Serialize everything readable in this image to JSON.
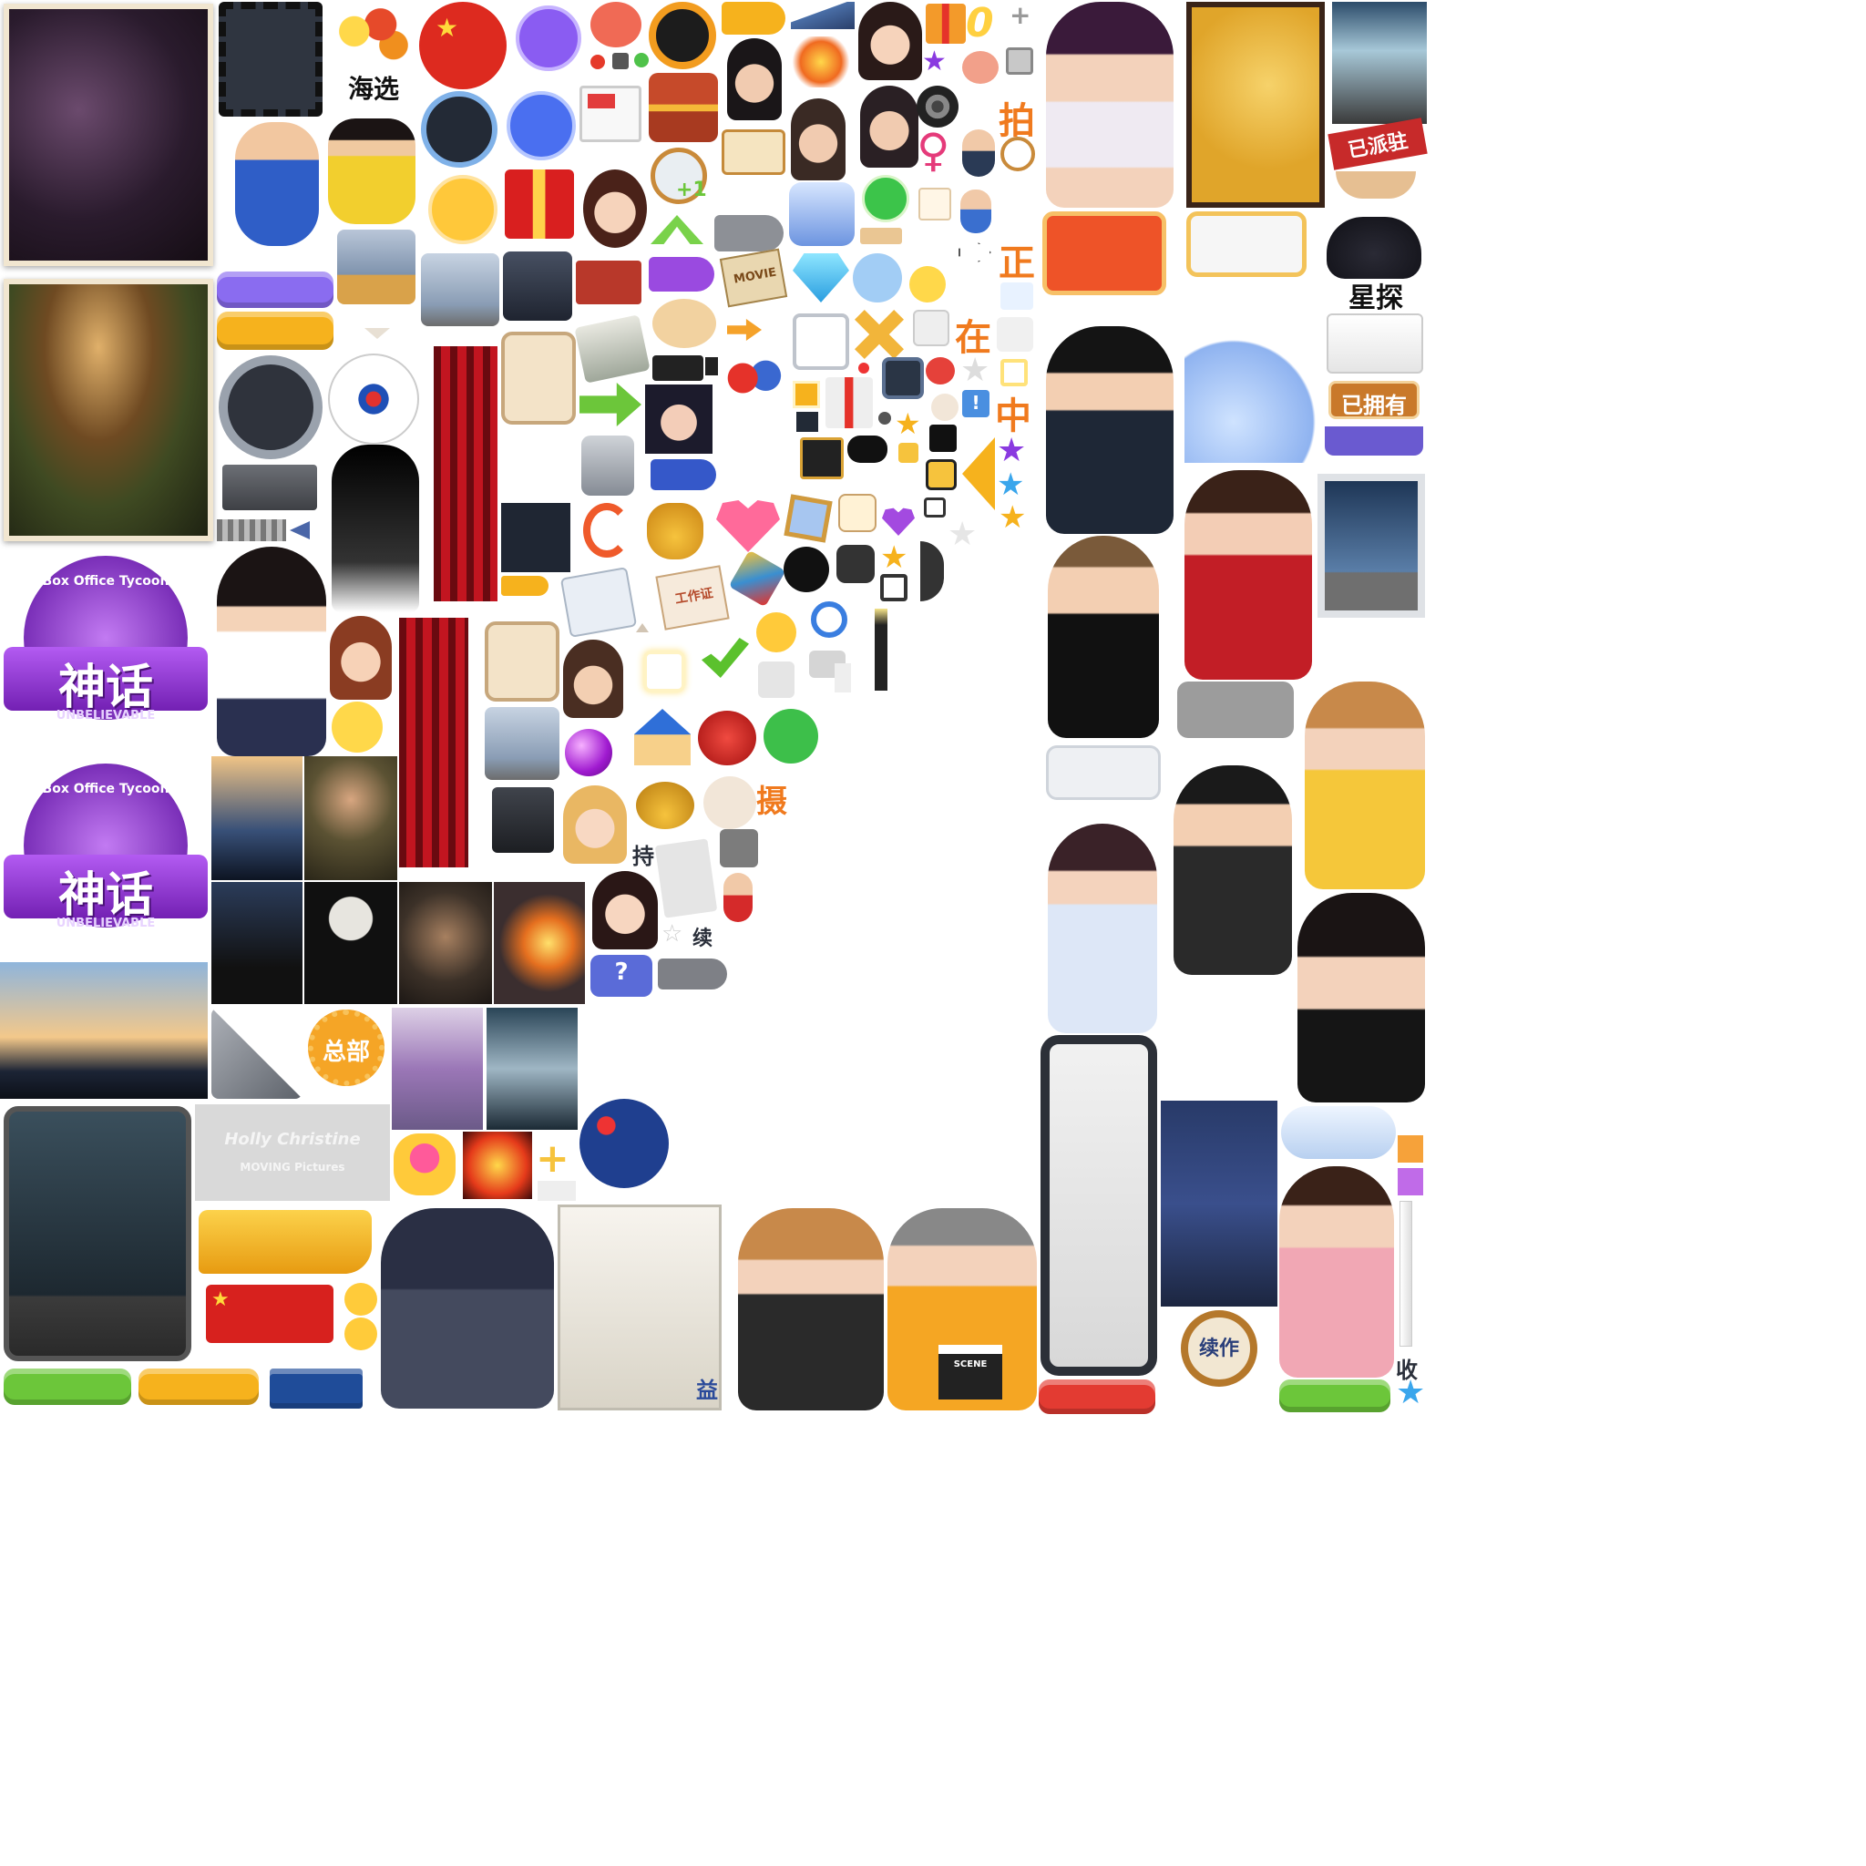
{
  "atlas": {
    "sheet_size": "2048x2048",
    "texts": {
      "haixuan": "海选",
      "pai": "拍",
      "zheng": "正",
      "zai": "在",
      "zhong": "中",
      "xingtan": "星探",
      "yipaizhu": "已派驻",
      "yiyongyou": "已拥有",
      "shenhua": "神话",
      "box_office": "Box Office Tycoon",
      "unbelievable": "UNBELIEVABLE",
      "zongbu": "总部",
      "she": "摄",
      "chi": "持",
      "xu": "续",
      "xuzuo": "续作",
      "yi": "益",
      "shou": "收",
      "plus_one": "+1",
      "zero": "0",
      "movie": "MOVIE",
      "gongzuozheng": "工作证",
      "holly": "Holly Christine",
      "moving_pictures": "MOVING Pictures",
      "scene": "SCENE"
    },
    "colors": {
      "purple": "#8a4fe0",
      "yellow": "#f6b21d",
      "orange": "#ef5a2b",
      "green": "#6cc63a",
      "blue": "#3d5fbf",
      "dark": "#2a2f3a",
      "red_curtain": "#a3101a",
      "cream": "#f3e3c8"
    },
    "icons": [
      "balloons-icon",
      "china-flag-icon",
      "korea-flag-icon",
      "australia-flag-icon",
      "treasure-chest-icon",
      "gift-icon",
      "lock-icon",
      "diamond-icon",
      "thumbs-up-icon",
      "heart-icon",
      "male-icon",
      "female-icon",
      "check-icon",
      "share-icon",
      "dice-icon",
      "star-icon",
      "microphone-icon",
      "film-reel-icon",
      "theater-masks-icon",
      "palette-icon",
      "money-icon",
      "coins-icon",
      "clapperboard-icon",
      "batman-icon",
      "house-icon",
      "balloon-dog-icon",
      "disco-ball-icon"
    ]
  }
}
